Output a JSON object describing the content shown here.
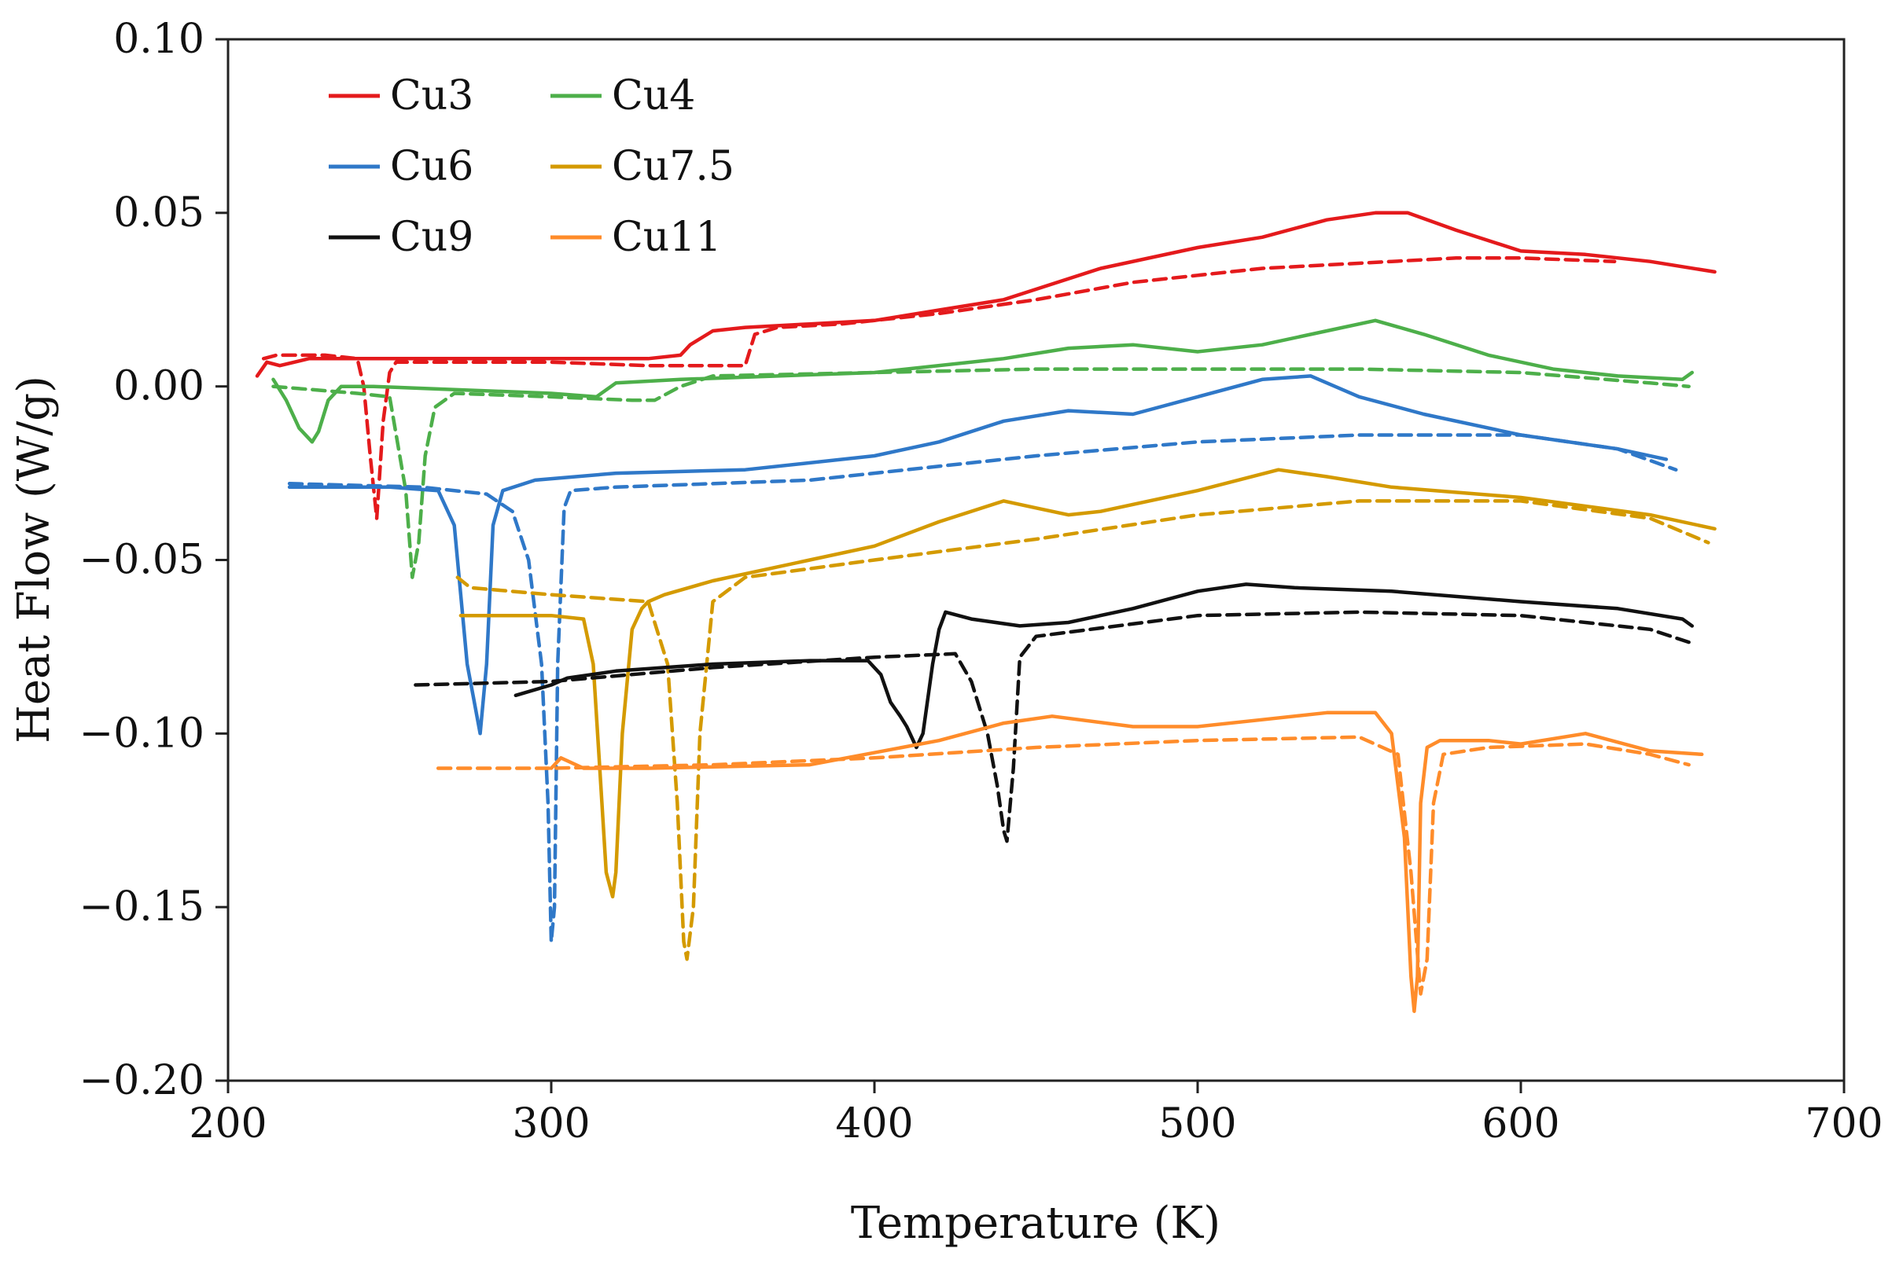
{
  "chart_data": {
    "type": "line",
    "title": "",
    "xlabel": "Temperature (K)",
    "ylabel": "Heat Flow (W/g)",
    "xlim": [
      200,
      700
    ],
    "ylim": [
      -0.2,
      0.1
    ],
    "xticks": [
      200,
      300,
      400,
      500,
      600,
      700
    ],
    "yticks": [
      -0.2,
      -0.15,
      -0.1,
      -0.05,
      0.0,
      0.05,
      0.1
    ],
    "xtick_labels": [
      "200",
      "300",
      "400",
      "500",
      "600",
      "700"
    ],
    "ytick_labels": [
      "−0.20",
      "−0.15",
      "−0.10",
      "−0.05",
      "0.00",
      "0.05",
      "0.10"
    ],
    "grid": false,
    "legend_location": "top-left",
    "legend": [
      {
        "name": "Cu3",
        "color": "#e41a1c"
      },
      {
        "name": "Cu4",
        "color": "#4daf4a"
      },
      {
        "name": "Cu6",
        "color": "#2f78c8"
      },
      {
        "name": "Cu7.5",
        "color": "#d49a00"
      },
      {
        "name": "Cu9",
        "color": "#111111"
      },
      {
        "name": "Cu11",
        "color": "#ff8c2a"
      }
    ],
    "series": [
      {
        "name": "Cu3",
        "style": "solid",
        "color": "#e41a1c",
        "x": [
          209,
          212,
          216,
          225,
          240,
          260,
          300,
          330,
          340,
          343,
          350,
          360,
          380,
          400,
          420,
          440,
          450,
          470,
          500,
          520,
          540,
          555,
          565,
          580,
          600,
          620,
          640,
          660
        ],
        "y": [
          0.003,
          0.007,
          0.006,
          0.008,
          0.008,
          0.008,
          0.008,
          0.008,
          0.009,
          0.012,
          0.016,
          0.017,
          0.018,
          0.019,
          0.022,
          0.025,
          0.028,
          0.034,
          0.04,
          0.043,
          0.048,
          0.05,
          0.05,
          0.045,
          0.039,
          0.038,
          0.036,
          0.033
        ]
      },
      {
        "name": "Cu3",
        "style": "dashed",
        "color": "#e41a1c",
        "x": [
          211,
          215,
          230,
          240,
          242,
          244,
          246,
          248,
          250,
          252,
          262,
          300,
          330,
          350,
          360,
          363,
          370,
          390,
          420,
          450,
          480,
          500,
          520,
          540,
          560,
          580,
          600,
          629
        ],
        "y": [
          0.008,
          0.009,
          0.009,
          0.008,
          0.0,
          -0.02,
          -0.038,
          -0.01,
          0.004,
          0.007,
          0.007,
          0.007,
          0.006,
          0.006,
          0.006,
          0.015,
          0.017,
          0.018,
          0.021,
          0.025,
          0.03,
          0.032,
          0.034,
          0.035,
          0.036,
          0.037,
          0.037,
          0.036
        ]
      },
      {
        "name": "Cu4",
        "style": "solid",
        "color": "#4daf4a",
        "x": [
          214,
          218,
          222,
          226,
          228,
          231,
          235,
          245,
          300,
          314,
          320,
          340,
          400,
          440,
          460,
          480,
          500,
          520,
          540,
          555,
          570,
          590,
          610,
          630,
          650,
          653
        ],
        "y": [
          0.002,
          -0.004,
          -0.012,
          -0.016,
          -0.013,
          -0.004,
          0.0,
          0.0,
          -0.002,
          -0.003,
          0.001,
          0.002,
          0.004,
          0.008,
          0.011,
          0.012,
          0.01,
          0.012,
          0.016,
          0.019,
          0.015,
          0.009,
          0.005,
          0.003,
          0.002,
          0.004
        ]
      },
      {
        "name": "Cu4",
        "style": "dashed",
        "color": "#4daf4a",
        "x": [
          214,
          240,
          250,
          255,
          257,
          259,
          261,
          264,
          270,
          300,
          325,
          332,
          340,
          350,
          400,
          450,
          500,
          550,
          600,
          640,
          652
        ],
        "y": [
          0.0,
          -0.002,
          -0.003,
          -0.03,
          -0.055,
          -0.045,
          -0.02,
          -0.006,
          -0.002,
          -0.003,
          -0.004,
          -0.004,
          0.0,
          0.003,
          0.004,
          0.005,
          0.005,
          0.005,
          0.004,
          0.001,
          0.0
        ]
      },
      {
        "name": "Cu6",
        "style": "solid",
        "color": "#2f78c8",
        "x": [
          219,
          250,
          265,
          270,
          272,
          274,
          276,
          278,
          280,
          282,
          285,
          295,
          320,
          360,
          400,
          420,
          440,
          460,
          480,
          500,
          520,
          535,
          550,
          570,
          600,
          630,
          645
        ],
        "y": [
          -0.029,
          -0.029,
          -0.03,
          -0.04,
          -0.06,
          -0.08,
          -0.09,
          -0.1,
          -0.08,
          -0.04,
          -0.03,
          -0.027,
          -0.025,
          -0.024,
          -0.02,
          -0.016,
          -0.01,
          -0.007,
          -0.008,
          -0.003,
          0.002,
          0.003,
          -0.003,
          -0.008,
          -0.014,
          -0.018,
          -0.021
        ]
      },
      {
        "name": "Cu6",
        "style": "dashed",
        "color": "#2f78c8",
        "x": [
          219,
          260,
          280,
          288,
          293,
          297,
          299,
          300,
          301,
          302,
          304,
          306,
          320,
          380,
          450,
          500,
          550,
          600,
          630,
          648
        ],
        "y": [
          -0.028,
          -0.029,
          -0.031,
          -0.036,
          -0.05,
          -0.08,
          -0.12,
          -0.16,
          -0.15,
          -0.08,
          -0.035,
          -0.03,
          -0.029,
          -0.027,
          -0.02,
          -0.016,
          -0.014,
          -0.014,
          -0.018,
          -0.024
        ]
      },
      {
        "name": "Cu7.5",
        "style": "solid",
        "color": "#d49a00",
        "x": [
          272,
          280,
          300,
          310,
          313,
          315,
          317,
          319,
          320,
          322,
          325,
          328,
          330,
          335,
          350,
          380,
          400,
          420,
          440,
          450,
          460,
          470,
          500,
          525,
          540,
          560,
          600,
          640,
          660
        ],
        "y": [
          -0.066,
          -0.066,
          -0.066,
          -0.067,
          -0.08,
          -0.11,
          -0.14,
          -0.147,
          -0.14,
          -0.1,
          -0.07,
          -0.064,
          -0.062,
          -0.06,
          -0.056,
          -0.05,
          -0.046,
          -0.039,
          -0.033,
          -0.035,
          -0.037,
          -0.036,
          -0.03,
          -0.024,
          -0.026,
          -0.029,
          -0.032,
          -0.037,
          -0.041
        ]
      },
      {
        "name": "Cu7.5",
        "style": "dashed",
        "color": "#d49a00",
        "x": [
          271,
          275,
          300,
          330,
          336,
          339,
          341,
          342,
          344,
          346,
          350,
          360,
          400,
          450,
          500,
          550,
          600,
          640,
          658
        ],
        "y": [
          -0.055,
          -0.058,
          -0.06,
          -0.062,
          -0.08,
          -0.12,
          -0.16,
          -0.165,
          -0.15,
          -0.1,
          -0.062,
          -0.055,
          -0.05,
          -0.044,
          -0.037,
          -0.033,
          -0.033,
          -0.038,
          -0.045
        ]
      },
      {
        "name": "Cu9",
        "style": "solid",
        "color": "#111111",
        "x": [
          289,
          300,
          305,
          320,
          350,
          380,
          398,
          402,
          405,
          408,
          410,
          413,
          415,
          418,
          420,
          422,
          430,
          445,
          460,
          480,
          500,
          515,
          530,
          560,
          600,
          630,
          650,
          653
        ],
        "y": [
          -0.089,
          -0.086,
          -0.084,
          -0.082,
          -0.08,
          -0.079,
          -0.079,
          -0.083,
          -0.091,
          -0.095,
          -0.098,
          -0.104,
          -0.1,
          -0.08,
          -0.07,
          -0.065,
          -0.067,
          -0.069,
          -0.068,
          -0.064,
          -0.059,
          -0.057,
          -0.058,
          -0.059,
          -0.062,
          -0.064,
          -0.067,
          -0.069
        ]
      },
      {
        "name": "Cu9",
        "style": "dashed",
        "color": "#111111",
        "x": [
          258,
          300,
          350,
          400,
          425,
          430,
          435,
          438,
          440,
          441,
          443,
          445,
          450,
          500,
          550,
          600,
          640,
          653
        ],
        "y": [
          -0.086,
          -0.085,
          -0.081,
          -0.078,
          -0.077,
          -0.085,
          -0.1,
          -0.115,
          -0.128,
          -0.131,
          -0.11,
          -0.078,
          -0.072,
          -0.066,
          -0.065,
          -0.066,
          -0.07,
          -0.074
        ]
      },
      {
        "name": "Cu11",
        "style": "solid",
        "color": "#ff8c2a",
        "x": [
          300,
          303,
          310,
          330,
          380,
          420,
          440,
          455,
          480,
          500,
          520,
          540,
          555,
          560,
          564,
          566,
          567,
          568,
          569,
          571,
          575,
          590,
          600,
          620,
          640,
          656
        ],
        "y": [
          -0.11,
          -0.107,
          -0.11,
          -0.11,
          -0.109,
          -0.102,
          -0.097,
          -0.095,
          -0.098,
          -0.098,
          -0.096,
          -0.094,
          -0.094,
          -0.1,
          -0.13,
          -0.17,
          -0.18,
          -0.17,
          -0.12,
          -0.104,
          -0.102,
          -0.102,
          -0.103,
          -0.1,
          -0.105,
          -0.106
        ]
      },
      {
        "name": "Cu11",
        "style": "dashed",
        "color": "#ff8c2a",
        "x": [
          265,
          300,
          350,
          400,
          450,
          500,
          550,
          562,
          566,
          569,
          571,
          573,
          576,
          590,
          620,
          640,
          652
        ],
        "y": [
          -0.11,
          -0.11,
          -0.109,
          -0.107,
          -0.104,
          -0.102,
          -0.101,
          -0.106,
          -0.14,
          -0.175,
          -0.165,
          -0.12,
          -0.106,
          -0.104,
          -0.103,
          -0.106,
          -0.109
        ]
      }
    ]
  }
}
